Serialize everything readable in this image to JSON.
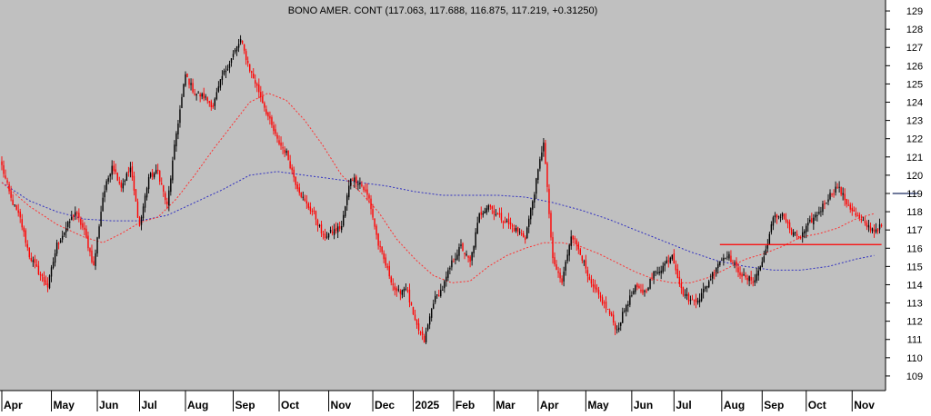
{
  "chart_data": {
    "type": "candlestick",
    "title": "BONO AMER. CONT (117.063, 117.688, 116.875, 117.219, +0.31250)",
    "y_axis": {
      "ticks": [
        109,
        110,
        111,
        112,
        113,
        114,
        115,
        116,
        117,
        118,
        119,
        120,
        121,
        122,
        123,
        124,
        125,
        126,
        127,
        128,
        129
      ],
      "range": [
        108.2,
        129.6
      ]
    },
    "x_axis": {
      "labels": [
        "Apr",
        "May",
        "Jun",
        "Jul",
        "Aug",
        "Sep",
        "Oct",
        "Nov",
        "Dec",
        "2025",
        "Feb",
        "Mar",
        "Apr",
        "May",
        "Jun",
        "Jul",
        "Aug",
        "Sep",
        "Oct",
        "Nov"
      ],
      "label_bars": [
        0,
        27,
        52,
        75,
        100,
        126,
        151,
        178,
        202,
        224,
        246,
        268,
        292,
        318,
        343,
        366,
        392,
        414,
        438,
        463
      ],
      "total_bars": 480
    },
    "background_color": "#c0c0c0",
    "price_path": [
      [
        0,
        120.5
      ],
      [
        5,
        118.7
      ],
      [
        10,
        117.6
      ],
      [
        15,
        115.6
      ],
      [
        20,
        114.7
      ],
      [
        25,
        113.9
      ],
      [
        30,
        116.2
      ],
      [
        35,
        117.1
      ],
      [
        40,
        118.0
      ],
      [
        45,
        116.9
      ],
      [
        50,
        115.0
      ],
      [
        55,
        118.8
      ],
      [
        60,
        120.6
      ],
      [
        65,
        119.4
      ],
      [
        70,
        120.4
      ],
      [
        75,
        117.2
      ],
      [
        80,
        119.9
      ],
      [
        85,
        120.2
      ],
      [
        90,
        118.3
      ],
      [
        95,
        122.3
      ],
      [
        100,
        125.5
      ],
      [
        105,
        124.5
      ],
      [
        110,
        124.3
      ],
      [
        115,
        123.8
      ],
      [
        120,
        125.4
      ],
      [
        125,
        126.4
      ],
      [
        130,
        127.4
      ],
      [
        135,
        125.8
      ],
      [
        140,
        124.6
      ],
      [
        145,
        123.2
      ],
      [
        150,
        121.9
      ],
      [
        155,
        121.2
      ],
      [
        160,
        119.6
      ],
      [
        165,
        118.5
      ],
      [
        170,
        117.9
      ],
      [
        175,
        116.6
      ],
      [
        180,
        116.9
      ],
      [
        185,
        117.2
      ],
      [
        190,
        119.9
      ],
      [
        195,
        119.6
      ],
      [
        200,
        118.7
      ],
      [
        205,
        116.2
      ],
      [
        210,
        114.8
      ],
      [
        215,
        113.5
      ],
      [
        220,
        113.9
      ],
      [
        225,
        111.9
      ],
      [
        230,
        110.9
      ],
      [
        235,
        113.1
      ],
      [
        240,
        113.8
      ],
      [
        245,
        115.2
      ],
      [
        250,
        116.1
      ],
      [
        255,
        115.2
      ],
      [
        260,
        117.8
      ],
      [
        265,
        118.4
      ],
      [
        270,
        117.8
      ],
      [
        275,
        117.4
      ],
      [
        280,
        117.0
      ],
      [
        285,
        116.6
      ],
      [
        290,
        119.1
      ],
      [
        295,
        121.9
      ],
      [
        297,
        119.2
      ],
      [
        300,
        115.3
      ],
      [
        305,
        114.1
      ],
      [
        310,
        116.8
      ],
      [
        315,
        115.8
      ],
      [
        320,
        114.1
      ],
      [
        325,
        113.4
      ],
      [
        330,
        112.6
      ],
      [
        335,
        111.5
      ],
      [
        340,
        112.9
      ],
      [
        345,
        113.8
      ],
      [
        350,
        113.6
      ],
      [
        355,
        114.6
      ],
      [
        360,
        115.0
      ],
      [
        365,
        115.7
      ],
      [
        370,
        113.7
      ],
      [
        375,
        113.1
      ],
      [
        380,
        113.3
      ],
      [
        385,
        114.2
      ],
      [
        390,
        115.2
      ],
      [
        395,
        115.7
      ],
      [
        400,
        114.9
      ],
      [
        405,
        114.3
      ],
      [
        410,
        114.3
      ],
      [
        415,
        115.5
      ],
      [
        420,
        117.6
      ],
      [
        425,
        117.9
      ],
      [
        430,
        116.8
      ],
      [
        435,
        116.6
      ],
      [
        440,
        117.4
      ],
      [
        445,
        118.0
      ],
      [
        450,
        118.8
      ],
      [
        455,
        119.4
      ],
      [
        460,
        118.5
      ],
      [
        465,
        117.8
      ],
      [
        470,
        117.3
      ],
      [
        475,
        117.0
      ],
      [
        479,
        117.2
      ]
    ],
    "ma_short_path": [
      [
        0,
        119.6
      ],
      [
        15,
        118.3
      ],
      [
        30,
        117.3
      ],
      [
        45,
        116.6
      ],
      [
        55,
        116.3
      ],
      [
        65,
        116.8
      ],
      [
        75,
        117.4
      ],
      [
        85,
        117.7
      ],
      [
        95,
        118.7
      ],
      [
        105,
        120.0
      ],
      [
        115,
        121.4
      ],
      [
        125,
        122.7
      ],
      [
        135,
        124.0
      ],
      [
        145,
        124.5
      ],
      [
        155,
        124.1
      ],
      [
        165,
        123.0
      ],
      [
        175,
        121.6
      ],
      [
        185,
        120.0
      ],
      [
        195,
        119.1
      ],
      [
        205,
        118.0
      ],
      [
        215,
        116.5
      ],
      [
        225,
        115.4
      ],
      [
        235,
        114.5
      ],
      [
        245,
        114.1
      ],
      [
        255,
        114.2
      ],
      [
        265,
        115.0
      ],
      [
        275,
        115.6
      ],
      [
        285,
        116.0
      ],
      [
        295,
        116.3
      ],
      [
        305,
        116.3
      ],
      [
        315,
        116.1
      ],
      [
        325,
        115.7
      ],
      [
        335,
        115.2
      ],
      [
        345,
        114.7
      ],
      [
        355,
        114.3
      ],
      [
        365,
        114.1
      ],
      [
        375,
        114.1
      ],
      [
        385,
        114.4
      ],
      [
        395,
        114.9
      ],
      [
        405,
        115.4
      ],
      [
        415,
        115.7
      ],
      [
        425,
        116.1
      ],
      [
        435,
        116.6
      ],
      [
        445,
        116.8
      ],
      [
        455,
        117.1
      ],
      [
        465,
        117.6
      ],
      [
        475,
        117.9
      ]
    ],
    "ma_long_path": [
      [
        0,
        119.6
      ],
      [
        15,
        118.6
      ],
      [
        30,
        118.0
      ],
      [
        45,
        117.6
      ],
      [
        60,
        117.5
      ],
      [
        75,
        117.5
      ],
      [
        90,
        117.8
      ],
      [
        105,
        118.5
      ],
      [
        120,
        119.2
      ],
      [
        135,
        120.0
      ],
      [
        150,
        120.2
      ],
      [
        165,
        120.0
      ],
      [
        180,
        119.8
      ],
      [
        195,
        119.6
      ],
      [
        210,
        119.4
      ],
      [
        225,
        119.1
      ],
      [
        240,
        118.9
      ],
      [
        255,
        118.9
      ],
      [
        270,
        118.9
      ],
      [
        285,
        118.8
      ],
      [
        300,
        118.5
      ],
      [
        315,
        118.1
      ],
      [
        330,
        117.6
      ],
      [
        345,
        117.0
      ],
      [
        360,
        116.4
      ],
      [
        375,
        115.8
      ],
      [
        390,
        115.3
      ],
      [
        405,
        115.0
      ],
      [
        420,
        114.8
      ],
      [
        435,
        114.8
      ],
      [
        450,
        115.0
      ],
      [
        465,
        115.4
      ],
      [
        475,
        115.6
      ]
    ],
    "horizontal_lines": [
      {
        "value": 116.2,
        "start_bar": 391,
        "end_bar": 479,
        "color": "#ff0000"
      },
      {
        "value": 119.0,
        "start_bar": 485,
        "end_bar": 499,
        "color": "#1a2a60"
      }
    ],
    "colors": {
      "up_candle": "#000000",
      "down_candle": "#ff0000",
      "ma_short": "#ff3030",
      "ma_long": "#3030c0",
      "axis": "#000000",
      "panel": "#ffffff"
    }
  }
}
